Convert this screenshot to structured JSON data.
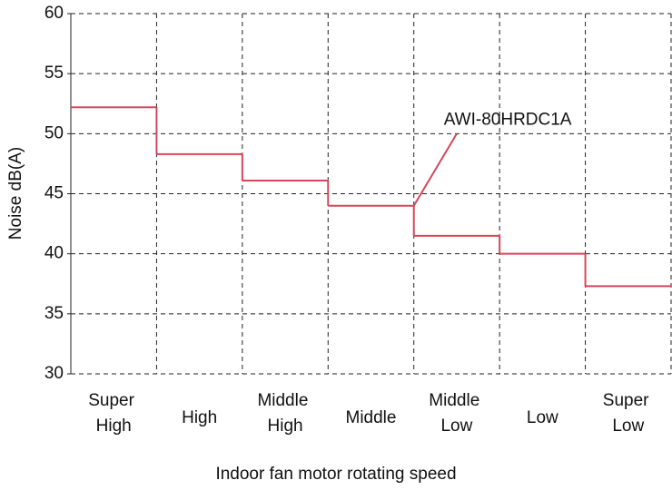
{
  "chart_data": {
    "type": "step",
    "x_label": "Indoor fan motor rotating speed",
    "y_label": "Noise dB(A)",
    "categories": [
      "Super High",
      "High",
      "Middle High",
      "Middle",
      "Middle Low",
      "Low",
      "Super Low"
    ],
    "series": [
      {
        "name": "AWI-80HRDC1A",
        "color": "#d6465a",
        "values": [
          52.2,
          48.3,
          46.1,
          44,
          41.5,
          40,
          37.3
        ]
      }
    ],
    "ylim": [
      30,
      60
    ],
    "yticks": [
      30,
      35,
      40,
      45,
      50,
      55,
      60
    ],
    "grid": true
  }
}
